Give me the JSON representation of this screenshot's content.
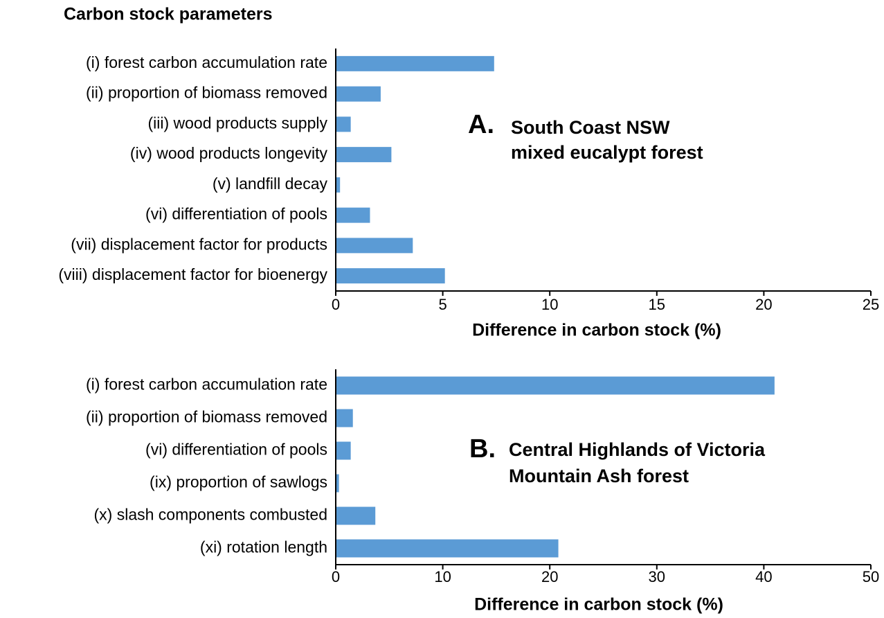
{
  "chart_data": [
    {
      "type": "bar",
      "orientation": "horizontal",
      "title": "Carbon stock parameters",
      "panel_label": "A.",
      "annotation": [
        "South Coast NSW",
        "mixed eucalypt forest"
      ],
      "categories": [
        "(i) forest carbon accumulation rate",
        "(ii) proportion of biomass removed",
        "(iii) wood products supply",
        "(iv) wood products longevity",
        "(v) landfill decay",
        "(vi) differentiation of pools",
        "(vii) displacement factor for products",
        "(viii) displacement factor for bioenergy"
      ],
      "values": [
        7.4,
        2.1,
        0.7,
        2.6,
        0.2,
        1.6,
        3.6,
        5.1
      ],
      "color": "#5b9bd5",
      "x_label": "Difference in carbon stock (%)",
      "xlim": [
        0,
        25
      ],
      "xticks": [
        0,
        5,
        10,
        15,
        20,
        25
      ],
      "grid": false
    },
    {
      "type": "bar",
      "orientation": "horizontal",
      "panel_label": "B.",
      "annotation": [
        "Central Highlands of Victoria",
        "Mountain Ash forest"
      ],
      "categories": [
        "(i) forest carbon accumulation rate",
        "(ii) proportion of biomass removed",
        "(vi) differentiation of pools",
        "(ix) proportion of sawlogs",
        "(x) slash components combusted",
        "(xi) rotation length"
      ],
      "values": [
        41.0,
        1.6,
        1.4,
        0.3,
        3.7,
        20.8
      ],
      "color": "#5b9bd5",
      "x_label": "Difference in carbon stock (%)",
      "xlim": [
        0,
        50
      ],
      "xticks": [
        0,
        10,
        20,
        30,
        40,
        50
      ],
      "grid": false
    }
  ]
}
